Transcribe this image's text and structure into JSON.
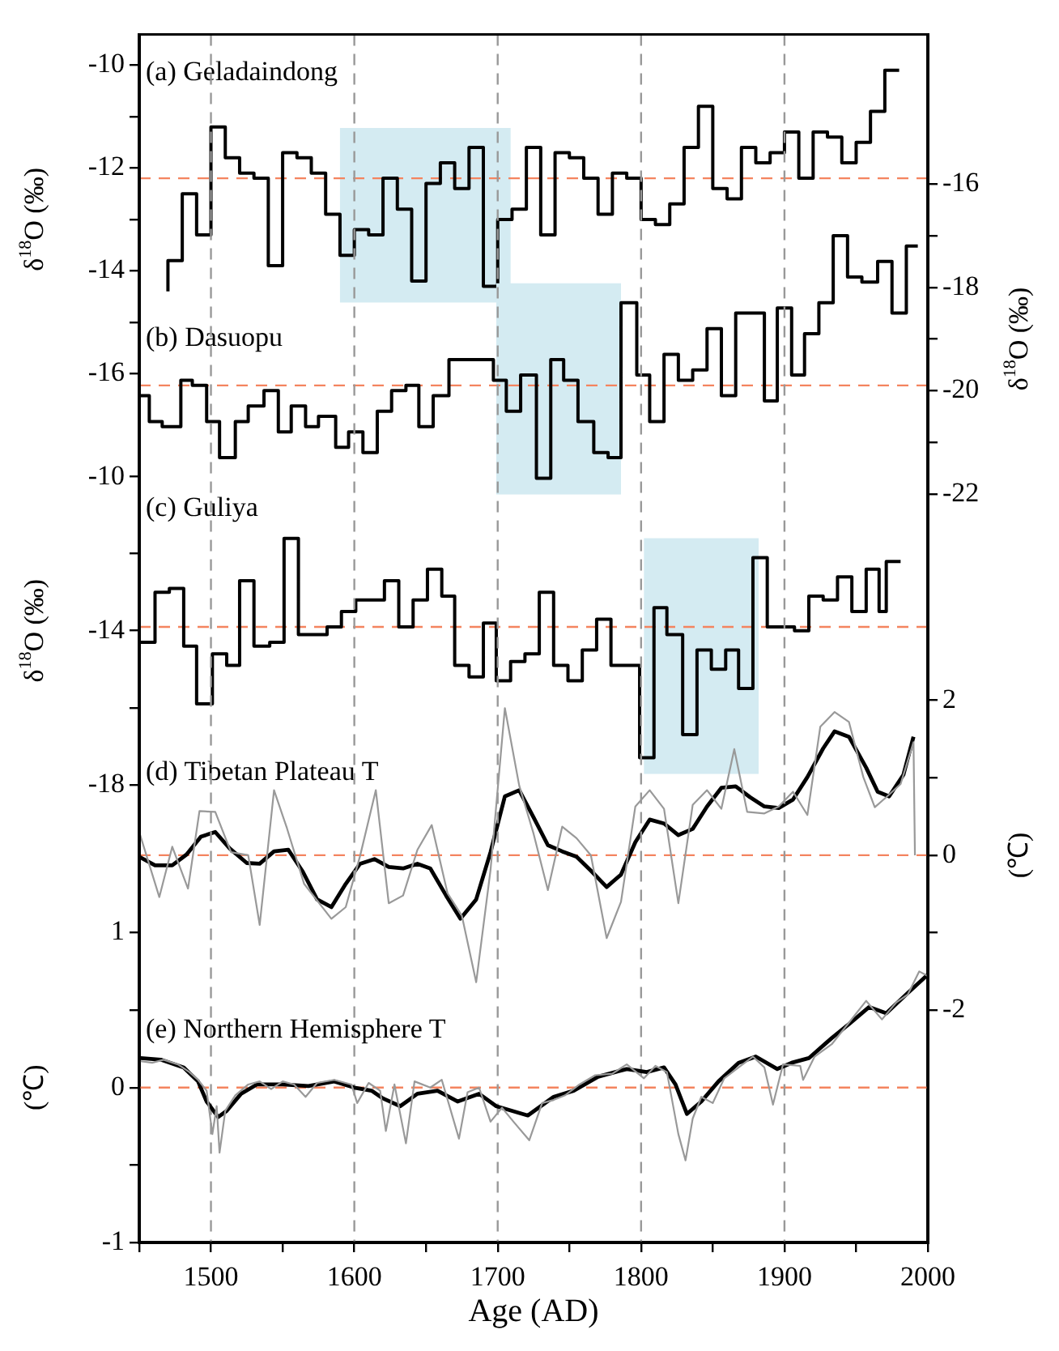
{
  "chart_data": [
    {
      "type": "step",
      "title": "(a) Geladaindong",
      "ylabel": "δ$^{18}$O (‰)",
      "xlim": [
        1450,
        2000
      ],
      "ylim": [
        -32.9,
        -9.4
      ],
      "yticks": [
        -10,
        {
          "value": -11,
          "label": null
        },
        -12,
        {
          "value": -13,
          "label": null
        },
        -14,
        {
          "value": -15,
          "label": null
        },
        -16
      ],
      "tick_labels": "y",
      "series": [
        {
          "color": "#000000",
          "x": [
            1470,
            1470,
            1480,
            1490,
            1500,
            1510,
            1520,
            1530,
            1540,
            1550,
            1560,
            1570,
            1580,
            1590,
            1600,
            1610,
            1620,
            1630,
            1640,
            1650,
            1660,
            1670,
            1680,
            1690,
            1700,
            1710,
            1720,
            1730,
            1740,
            1750,
            1760,
            1770,
            1780,
            1790,
            1800,
            1810,
            1820,
            1830,
            1840,
            1850,
            1860,
            1870,
            1880,
            1890,
            1900,
            1910,
            1920,
            1930,
            1940,
            1950,
            1960,
            1970,
            1980
          ],
          "values": [
            -14.4,
            -13.8,
            -12.5,
            -13.3,
            -11.2,
            -11.8,
            -12.1,
            -12.2,
            -13.9,
            -11.7,
            -11.8,
            -12.1,
            -12.9,
            -13.7,
            -13.2,
            -13.3,
            -12.2,
            -12.8,
            -14.2,
            -12.3,
            -11.9,
            -12.4,
            -11.6,
            -14.3,
            -13.0,
            -12.8,
            -11.6,
            -13.3,
            -11.7,
            -11.8,
            -12.2,
            -12.9,
            -12.1,
            -12.2,
            -13.0,
            -13.1,
            -12.7,
            -11.6,
            -10.8,
            -12.4,
            -12.6,
            -11.6,
            -11.9,
            -11.7,
            -11.3,
            -12.2,
            -11.3,
            -11.4,
            -11.9,
            -11.5,
            -10.9,
            -10.1,
            -10.1
          ]
        }
      ],
      "ref_lines": [
        {
          "axis": "y",
          "value": -12.2,
          "color": "#f4845f",
          "line_style": "dashed"
        }
      ],
      "bands": [
        {
          "axis": "x",
          "from": 1590,
          "to": 1709,
          "color": "#d4ebf2"
        }
      ]
    },
    {
      "type": "step",
      "title": "(b) Dasuopu",
      "y2label": "δ$^{18}$O (‰)",
      "xlim": [
        1450,
        2000
      ],
      "y2lim": [
        -36.5,
        -13.1
      ],
      "y2ticks": [
        -16,
        {
          "value": -17,
          "label": null
        },
        -18,
        {
          "value": -19,
          "label": null
        },
        -20,
        {
          "value": -21,
          "label": null
        },
        -22
      ],
      "tick_labels": "y",
      "series": [
        {
          "color": "#000000",
          "axis": "y2",
          "x": [
            1450,
            1457,
            1466,
            1479,
            1487,
            1497,
            1506,
            1517,
            1526,
            1537,
            1547,
            1556,
            1566,
            1575,
            1587,
            1596,
            1606,
            1616,
            1626,
            1636,
            1645,
            1655,
            1666,
            1697,
            1706,
            1716,
            1727,
            1737,
            1746,
            1756,
            1767,
            1777,
            1786,
            1797,
            1806,
            1816,
            1826,
            1836,
            1846,
            1856,
            1866,
            1886,
            1895,
            1905,
            1914,
            1924,
            1934,
            1944,
            1954,
            1965,
            1975,
            1985,
            1993
          ],
          "values": [
            -20.1,
            -20.6,
            -20.7,
            -19.8,
            -19.9,
            -20.6,
            -21.3,
            -20.6,
            -20.3,
            -20.0,
            -20.8,
            -20.3,
            -20.7,
            -20.5,
            -21.1,
            -20.8,
            -21.2,
            -20.4,
            -20.0,
            -19.9,
            -20.7,
            -20.1,
            -19.4,
            -19.8,
            -20.4,
            -19.7,
            -21.7,
            -19.4,
            -19.8,
            -20.6,
            -21.2,
            -21.3,
            -18.3,
            -19.7,
            -20.6,
            -19.3,
            -19.8,
            -19.6,
            -18.8,
            -20.1,
            -18.5,
            -20.2,
            -18.4,
            -19.7,
            -18.9,
            -18.3,
            -17.0,
            -17.8,
            -17.9,
            -17.5,
            -18.5,
            -17.2,
            -17.2
          ]
        }
      ],
      "ref_lines": [
        {
          "axis": "y2",
          "value": -19.9,
          "color": "#f4845f",
          "line_style": "dashed"
        }
      ],
      "bands": [
        {
          "axis": "x",
          "from": 1699,
          "to": 1786,
          "color": "#d4ebf2"
        }
      ]
    },
    {
      "type": "step",
      "title": "(c) Guliya",
      "ylabel": "δ$^{18}$O (‰)",
      "xlim": [
        1450,
        2000
      ],
      "ylim": [
        -29.9,
        1.5
      ],
      "yticks": [
        -10,
        {
          "value": -12,
          "label": null
        },
        -14,
        {
          "value": -16,
          "label": null
        },
        -18
      ],
      "tick_labels": "y",
      "series": [
        {
          "color": "#000000",
          "x": [
            1451,
            1461,
            1471,
            1481,
            1490,
            1501,
            1511,
            1520,
            1530,
            1541,
            1551,
            1561,
            1581,
            1591,
            1601,
            1621,
            1631,
            1641,
            1651,
            1661,
            1670,
            1680,
            1690,
            1699,
            1709,
            1719,
            1729,
            1739,
            1749,
            1759,
            1769,
            1779,
            1799,
            1809,
            1818,
            1829,
            1839,
            1849,
            1859,
            1868,
            1878,
            1888,
            1907,
            1917,
            1927,
            1937,
            1947,
            1957,
            1966,
            1971,
            1981
          ],
          "values": [
            -14.3,
            -13.0,
            -12.9,
            -14.4,
            -15.9,
            -14.6,
            -14.9,
            -12.7,
            -14.4,
            -14.3,
            -11.6,
            -14.1,
            -13.9,
            -13.5,
            -13.2,
            -12.7,
            -13.9,
            -13.2,
            -12.4,
            -13.1,
            -14.9,
            -15.2,
            -13.8,
            -15.3,
            -14.8,
            -14.6,
            -13.0,
            -14.9,
            -15.3,
            -14.5,
            -13.7,
            -14.9,
            -17.3,
            -13.4,
            -14.1,
            -16.7,
            -14.5,
            -15.0,
            -14.5,
            -15.5,
            -12.1,
            -13.9,
            -14.0,
            -13.1,
            -13.2,
            -12.6,
            -13.5,
            -12.4,
            -13.5,
            -12.2,
            -12.2
          ]
        }
      ],
      "ref_lines": [
        {
          "axis": "y",
          "value": -13.9,
          "color": "#f4845f",
          "line_style": "dashed"
        }
      ],
      "bands": [
        {
          "axis": "x",
          "from": 1802,
          "to": 1882,
          "color": "#d4ebf2"
        }
      ]
    },
    {
      "type": "line",
      "title": "(d) Tibetan Plateau T",
      "y2label": "(℃)",
      "xlim": [
        1450,
        2000
      ],
      "y2lim": [
        -5.0,
        10.6
      ],
      "y2ticks": [
        2,
        {
          "value": 1,
          "label": null
        },
        0,
        {
          "value": -1,
          "label": null
        },
        -2
      ],
      "tick_labels": "y",
      "series": [
        {
          "color": "#999999",
          "axis": "y2",
          "x": [
            1450,
            1464,
            1473,
            1484,
            1492,
            1503,
            1514,
            1526,
            1534,
            1544,
            1553,
            1565,
            1584,
            1594,
            1604,
            1615,
            1624,
            1634,
            1644,
            1654,
            1665,
            1675,
            1685,
            1695,
            1705,
            1715,
            1725,
            1735,
            1745,
            1755,
            1765,
            1776,
            1786,
            1796,
            1806,
            1816,
            1826,
            1836,
            1846,
            1856,
            1865,
            1874,
            1886,
            1896,
            1906,
            1916,
            1925,
            1935,
            1945,
            1955,
            1963,
            1971,
            1981,
            1990,
            1991
          ],
          "values": [
            0.3,
            -0.54,
            0.11,
            -0.43,
            0.57,
            0.56,
            0.04,
            0,
            -0.9,
            0.84,
            0.35,
            -0.37,
            -0.82,
            -0.67,
            -0.01,
            0.84,
            -0.62,
            -0.52,
            0.07,
            0.39,
            -0.49,
            -0.78,
            -1.64,
            -0.19,
            1.9,
            0.9,
            0.28,
            -0.45,
            0.37,
            0.22,
            0,
            -1.07,
            -0.6,
            0.63,
            0.84,
            0.6,
            -0.62,
            0.65,
            0.84,
            0.6,
            1.37,
            0.56,
            0.54,
            0.63,
            0.82,
            0.52,
            1.66,
            1.85,
            1.72,
            1.01,
            0.62,
            0.75,
            0.92,
            1.46,
            0
          ]
        },
        {
          "color": "#000000",
          "axis": "y2",
          "x": [
            1450,
            1461,
            1473,
            1483,
            1493,
            1503,
            1513,
            1525,
            1534,
            1544,
            1554,
            1564,
            1574,
            1584,
            1594,
            1604,
            1614,
            1624,
            1634,
            1644,
            1653,
            1664,
            1674,
            1685,
            1695,
            1705,
            1715,
            1725,
            1735,
            1745,
            1755,
            1765,
            1776,
            1786,
            1796,
            1806,
            1816,
            1826,
            1836,
            1846,
            1856,
            1866,
            1876,
            1886,
            1896,
            1906,
            1916,
            1927,
            1935,
            1945,
            1957,
            1965,
            1973,
            1983,
            1990
          ],
          "values": [
            -0.02,
            -0.13,
            -0.13,
            0.01,
            0.24,
            0.3,
            0.09,
            -0.1,
            -0.11,
            0.05,
            0.07,
            -0.21,
            -0.57,
            -0.67,
            -0.37,
            -0.11,
            -0.05,
            -0.15,
            -0.17,
            -0.11,
            -0.17,
            -0.52,
            -0.82,
            -0.57,
            0.04,
            0.76,
            0.84,
            0.49,
            0.13,
            0.05,
            -0.02,
            -0.2,
            -0.41,
            -0.25,
            0.17,
            0.46,
            0.41,
            0.26,
            0.34,
            0.63,
            0.87,
            0.89,
            0.75,
            0.63,
            0.61,
            0.72,
            1.01,
            1.38,
            1.6,
            1.53,
            1.13,
            0.82,
            0.76,
            1.04,
            1.53
          ]
        }
      ],
      "ref_lines": [
        {
          "axis": "y2",
          "value": 0,
          "color": "#f4845f",
          "line_style": "dashed"
        }
      ]
    },
    {
      "type": "line",
      "title": "(e) Northern Hemisphere T",
      "xlabel": "Age (AD)",
      "ylabel": "(℃)",
      "xlim": [
        1450,
        2000
      ],
      "xticks": [
        {
          "value": 1450,
          "label": null
        },
        1500,
        {
          "value": 1550,
          "label": null
        },
        1600,
        {
          "value": 1650,
          "label": null
        },
        1700,
        {
          "value": 1750,
          "label": null
        },
        1800,
        {
          "value": 1850,
          "label": null
        },
        1900,
        {
          "value": 1950,
          "label": null
        },
        2000
      ],
      "ylim": [
        -1,
        6.8
      ],
      "yticks": [
        1,
        {
          "value": 0.5,
          "label": null
        },
        0,
        {
          "value": -0.5,
          "label": null
        },
        -1
      ],
      "series": [
        {
          "color": "#999999",
          "x": [
            1451,
            1459,
            1467,
            1477,
            1485,
            1491,
            1497,
            1501,
            1504,
            1506,
            1510,
            1517,
            1526,
            1534,
            1542,
            1550,
            1558,
            1566,
            1574,
            1586,
            1598,
            1602,
            1610,
            1618,
            1622,
            1628,
            1636,
            1642,
            1653,
            1661,
            1673,
            1679,
            1687,
            1695,
            1703,
            1711,
            1722,
            1731,
            1739,
            1747,
            1757,
            1768,
            1780,
            1790,
            1802,
            1810,
            1818,
            1826,
            1831,
            1836,
            1842,
            1850,
            1858,
            1868,
            1878,
            1886,
            1892,
            1899,
            1911,
            1913,
            1921,
            1933,
            1945,
            1957,
            1968,
            1978,
            1986,
            1994,
            2000
          ],
          "values": [
            0.17,
            0.16,
            0.18,
            0.15,
            0.1,
            0.05,
            -0.02,
            -0.3,
            -0.12,
            -0.42,
            -0.15,
            -0.05,
            0.02,
            0.04,
            -0.01,
            0.04,
            0.02,
            -0.06,
            0.03,
            0.05,
            0.02,
            -0.1,
            0.03,
            -0.02,
            -0.28,
            0.02,
            -0.36,
            0.04,
            0,
            0.05,
            -0.33,
            -0.03,
            0,
            -0.22,
            -0.13,
            -0.22,
            -0.34,
            -0.1,
            -0.08,
            -0.05,
            0.02,
            0.08,
            0.09,
            0.15,
            0.06,
            0.14,
            0.1,
            -0.3,
            -0.47,
            -0.2,
            -0.06,
            -0.1,
            0.06,
            0.13,
            0.2,
            0.13,
            -0.11,
            0.15,
            0.14,
            0.05,
            0.2,
            0.28,
            0.42,
            0.56,
            0.44,
            0.55,
            0.6,
            0.75,
            0.72
          ]
        },
        {
          "color": "#000000",
          "x": [
            1451,
            1465,
            1481,
            1491,
            1497,
            1505,
            1511,
            1521,
            1532,
            1550,
            1568,
            1586,
            1600,
            1612,
            1620,
            1632,
            1644,
            1658,
            1672,
            1687,
            1699,
            1721,
            1739,
            1753,
            1770,
            1790,
            1804,
            1816,
            1824,
            1832,
            1842,
            1854,
            1868,
            1880,
            1895,
            1905,
            1917,
            1933,
            1945,
            1959,
            1971,
            1986,
            2000
          ],
          "values": [
            0.19,
            0.18,
            0.13,
            0.04,
            -0.09,
            -0.19,
            -0.15,
            -0.04,
            0.02,
            0.02,
            0.01,
            0.04,
            0,
            -0.02,
            -0.07,
            -0.12,
            -0.04,
            -0.02,
            -0.09,
            -0.04,
            -0.12,
            -0.18,
            -0.06,
            -0.02,
            0.07,
            0.12,
            0.1,
            0.13,
            0.02,
            -0.17,
            -0.09,
            0.04,
            0.16,
            0.2,
            0.12,
            0.16,
            0.19,
            0.32,
            0.41,
            0.52,
            0.48,
            0.61,
            0.73
          ]
        }
      ],
      "ref_lines": [
        {
          "axis": "y",
          "value": 0,
          "color": "#f4845f",
          "line_style": "dashed"
        },
        {
          "axis": "x",
          "value": 1500,
          "color": "#999999",
          "line_style": "dashed"
        },
        {
          "axis": "x",
          "value": 1600,
          "color": "#999999",
          "line_style": "dashed"
        },
        {
          "axis": "x",
          "value": 1700,
          "color": "#999999",
          "line_style": "dashed"
        },
        {
          "axis": "x",
          "value": 1800,
          "color": "#999999",
          "line_style": "dashed"
        },
        {
          "axis": "x",
          "value": 1900,
          "color": "#999999",
          "line_style": "dashed"
        }
      ]
    }
  ]
}
